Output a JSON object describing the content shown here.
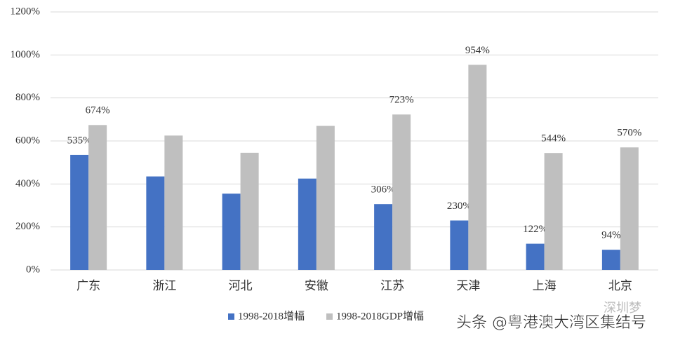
{
  "chart_data": {
    "type": "bar",
    "categories": [
      "广东",
      "浙江",
      "河北",
      "安徽",
      "江苏",
      "天津",
      "上海",
      "北京"
    ],
    "series": [
      {
        "name": "1998-2018增幅",
        "color": "#4472c4",
        "values": [
          535,
          435,
          355,
          425,
          306,
          230,
          122,
          94
        ],
        "value_labels": [
          "535%",
          null,
          null,
          null,
          "306%",
          "230%",
          "122%",
          "94%"
        ]
      },
      {
        "name": "1998-2018GDP增幅",
        "color": "#bfbfbf",
        "values": [
          674,
          625,
          545,
          670,
          723,
          954,
          544,
          570
        ],
        "value_labels": [
          "674%",
          null,
          null,
          null,
          "723%",
          "954%",
          "544%",
          "570%"
        ]
      }
    ],
    "ylim": [
      0,
      1200
    ],
    "yticks": [
      {
        "value": 0,
        "label": "0%"
      },
      {
        "value": 200,
        "label": "200%"
      },
      {
        "value": 400,
        "label": "400%"
      },
      {
        "value": 600,
        "label": "600%"
      },
      {
        "value": 800,
        "label": "800%"
      },
      {
        "value": 1000,
        "label": "1000%"
      },
      {
        "value": 1200,
        "label": "1200%"
      }
    ],
    "grid": true,
    "legend": "bottom",
    "annotations": [
      "头条 @粤港澳大湾区集结号",
      "深圳梦"
    ]
  }
}
